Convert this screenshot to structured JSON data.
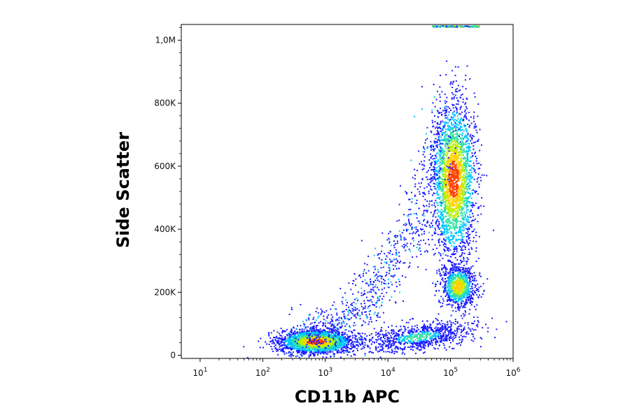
{
  "chart_data": {
    "type": "scatter",
    "title": "",
    "xlabel": "CD11b APC",
    "ylabel": "Side Scatter",
    "x_scale": "log",
    "xlim": [
      5,
      1000000
    ],
    "ylim": [
      -10000,
      1050000
    ],
    "x_ticks": [
      {
        "base": "10",
        "exp": "1",
        "value": 10
      },
      {
        "base": "10",
        "exp": "2",
        "value": 100
      },
      {
        "base": "10",
        "exp": "3",
        "value": 1000
      },
      {
        "base": "10",
        "exp": "4",
        "value": 10000
      },
      {
        "base": "10",
        "exp": "5",
        "value": 100000
      },
      {
        "base": "10",
        "exp": "6",
        "value": 1000000
      }
    ],
    "y_ticks": [
      {
        "label": "0",
        "value": 0
      },
      {
        "label": "200K",
        "value": 200000
      },
      {
        "label": "400K",
        "value": 400000
      },
      {
        "label": "600K",
        "value": 600000
      },
      {
        "label": "800K",
        "value": 800000
      },
      {
        "label": "1,0M",
        "value": 1000000
      }
    ],
    "grid": false,
    "legend": "none",
    "colormap": [
      "#1a1aff",
      "#00c8ff",
      "#33e0a0",
      "#b8f000",
      "#ffd000",
      "#ff4000"
    ],
    "populations": [
      {
        "x_center": 700,
        "y_center": 45000,
        "x_spread_decades": 0.28,
        "y_spread": 18000,
        "density": "high",
        "peak_color": "#ff2000"
      },
      {
        "x_center": 110000,
        "y_center": 560000,
        "x_spread_decades": 0.17,
        "y_spread": 120000,
        "density": "high",
        "peak_color": "#ff6000"
      },
      {
        "x_center": 130000,
        "y_center": 220000,
        "x_spread_decades": 0.14,
        "y_spread": 35000,
        "density": "medium",
        "peak_color": "#b8f000"
      },
      {
        "x_center": 30000,
        "y_center": 60000,
        "x_spread_decades": 0.45,
        "y_spread": 20000,
        "density": "medium",
        "peak_color": "#00c8ff"
      }
    ]
  }
}
